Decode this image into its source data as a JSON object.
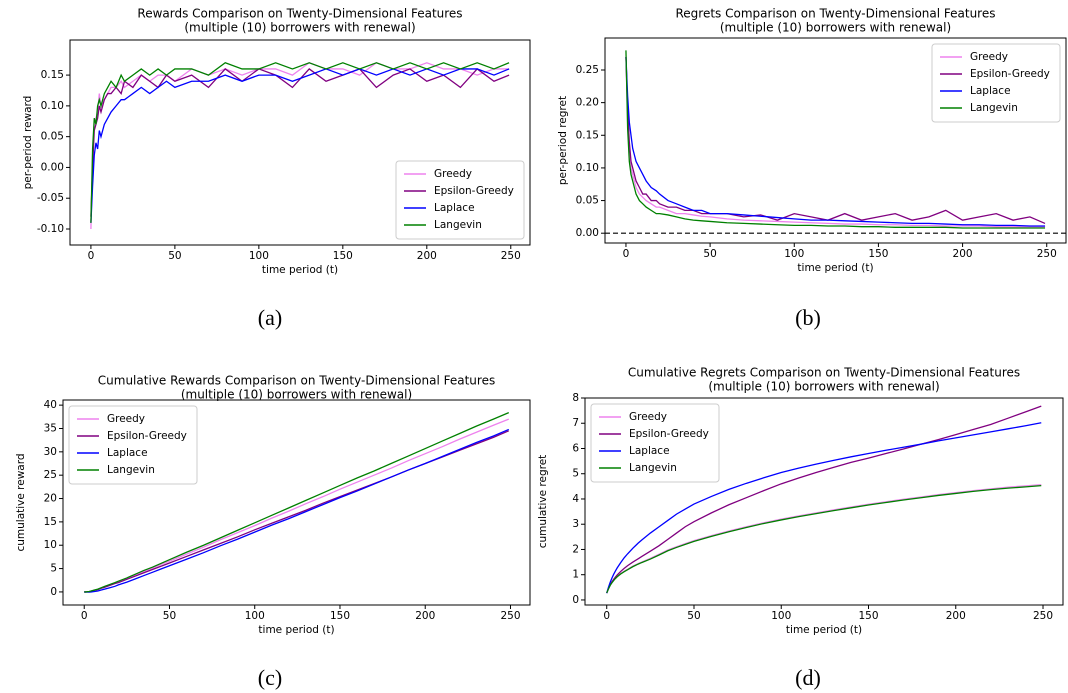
{
  "chart_data": [
    {
      "type": "line",
      "title": "Rewards Comparison on Twenty-Dimensional Features",
      "subtitle": "(multiple (10) borrowers with renewal)",
      "x_label": "time period (t)",
      "y_label": "per-period reward",
      "caption": "(a)",
      "legend": "lower right",
      "xlim": [
        -12.45,
        261.45
      ],
      "xticks": [
        0,
        50,
        100,
        150,
        200,
        250
      ],
      "ylim": [
        -0.126,
        0.207
      ],
      "yticks": [
        {
          "value": -0.1,
          "label": "-0.10"
        },
        -0.05,
        {
          "value": 0,
          "label": "0.00"
        },
        0.05,
        {
          "value": 0.1,
          "label": "0.10"
        },
        0.15
      ],
      "x": [
        0,
        1,
        2,
        3,
        4,
        5,
        6,
        8,
        10,
        12,
        15,
        18,
        20,
        25,
        30,
        35,
        40,
        45,
        50,
        60,
        70,
        80,
        90,
        100,
        110,
        120,
        130,
        140,
        150,
        160,
        170,
        180,
        190,
        200,
        210,
        220,
        230,
        240,
        249
      ],
      "series": [
        {
          "name": "Greedy",
          "color": "#ee82ee",
          "values": [
            -0.1,
            0.02,
            0.07,
            0.08,
            0.09,
            0.12,
            0.1,
            0.11,
            0.12,
            0.13,
            0.13,
            0.14,
            0.13,
            0.14,
            0.15,
            0.14,
            0.15,
            0.15,
            0.14,
            0.16,
            0.15,
            0.16,
            0.15,
            0.16,
            0.16,
            0.15,
            0.17,
            0.16,
            0.16,
            0.15,
            0.17,
            0.16,
            0.16,
            0.17,
            0.16,
            0.16,
            0.15,
            0.16,
            0.16
          ]
        },
        {
          "name": "Epsilon-Greedy",
          "color": "#800080",
          "values": [
            -0.08,
            0.0,
            0.06,
            0.07,
            0.08,
            0.1,
            0.09,
            0.11,
            0.12,
            0.12,
            0.13,
            0.12,
            0.14,
            0.13,
            0.15,
            0.14,
            0.13,
            0.15,
            0.14,
            0.15,
            0.13,
            0.16,
            0.14,
            0.16,
            0.15,
            0.13,
            0.16,
            0.14,
            0.15,
            0.16,
            0.13,
            0.15,
            0.16,
            0.14,
            0.15,
            0.13,
            0.16,
            0.14,
            0.15
          ]
        },
        {
          "name": "Laplace",
          "color": "#0000ff",
          "values": [
            -0.09,
            -0.03,
            0.02,
            0.04,
            0.03,
            0.06,
            0.05,
            0.07,
            0.08,
            0.09,
            0.1,
            0.11,
            0.11,
            0.12,
            0.13,
            0.12,
            0.13,
            0.14,
            0.13,
            0.14,
            0.14,
            0.15,
            0.14,
            0.15,
            0.15,
            0.14,
            0.15,
            0.16,
            0.15,
            0.16,
            0.15,
            0.16,
            0.15,
            0.16,
            0.15,
            0.16,
            0.16,
            0.15,
            0.16
          ]
        },
        {
          "name": "Langevin",
          "color": "#008000",
          "values": [
            -0.09,
            0.03,
            0.08,
            0.07,
            0.1,
            0.11,
            0.1,
            0.12,
            0.13,
            0.14,
            0.13,
            0.15,
            0.14,
            0.15,
            0.16,
            0.15,
            0.16,
            0.15,
            0.16,
            0.16,
            0.15,
            0.17,
            0.16,
            0.16,
            0.17,
            0.16,
            0.17,
            0.16,
            0.17,
            0.16,
            0.17,
            0.16,
            0.17,
            0.16,
            0.17,
            0.16,
            0.17,
            0.16,
            0.17
          ]
        }
      ]
    },
    {
      "type": "line",
      "title": "Regrets Comparison on Twenty-Dimensional Features",
      "subtitle": "(multiple (10) borrowers with renewal)",
      "x_label": "time period (t)",
      "y_label": "per-period regret",
      "caption": "(b)",
      "legend": "upper right",
      "reference_line": 0,
      "xlim": [
        -12.45,
        261.45
      ],
      "xticks": [
        0,
        50,
        100,
        150,
        200,
        250
      ],
      "ylim": [
        -0.015,
        0.299
      ],
      "yticks": [
        {
          "value": 0,
          "label": "0.00"
        },
        0.05,
        {
          "value": 0.1,
          "label": "0.10"
        },
        0.15,
        {
          "value": 0.2,
          "label": "0.20"
        },
        0.25
      ],
      "x": [
        0,
        1,
        2,
        3,
        4,
        5,
        6,
        8,
        10,
        12,
        15,
        18,
        20,
        25,
        30,
        35,
        40,
        45,
        50,
        60,
        70,
        80,
        90,
        100,
        110,
        120,
        130,
        140,
        150,
        160,
        170,
        180,
        190,
        200,
        210,
        220,
        230,
        240,
        249
      ],
      "series": [
        {
          "name": "Greedy",
          "color": "#ee82ee",
          "values": [
            0.27,
            0.17,
            0.12,
            0.1,
            0.09,
            0.08,
            0.07,
            0.06,
            0.055,
            0.05,
            0.045,
            0.04,
            0.04,
            0.035,
            0.03,
            0.03,
            0.028,
            0.026,
            0.025,
            0.022,
            0.02,
            0.019,
            0.018,
            0.017,
            0.016,
            0.015,
            0.014,
            0.014,
            0.013,
            0.013,
            0.012,
            0.012,
            0.011,
            0.011,
            0.011,
            0.01,
            0.01,
            0.01,
            0.01
          ]
        },
        {
          "name": "Epsilon-Greedy",
          "color": "#800080",
          "values": [
            0.27,
            0.19,
            0.14,
            0.11,
            0.1,
            0.09,
            0.08,
            0.07,
            0.06,
            0.06,
            0.05,
            0.05,
            0.045,
            0.04,
            0.04,
            0.035,
            0.035,
            0.03,
            0.03,
            0.03,
            0.025,
            0.028,
            0.02,
            0.03,
            0.025,
            0.02,
            0.03,
            0.02,
            0.025,
            0.03,
            0.02,
            0.025,
            0.035,
            0.02,
            0.025,
            0.03,
            0.02,
            0.025,
            0.015
          ]
        },
        {
          "name": "Laplace",
          "color": "#0000ff",
          "values": [
            0.27,
            0.21,
            0.17,
            0.15,
            0.13,
            0.12,
            0.11,
            0.1,
            0.09,
            0.08,
            0.07,
            0.065,
            0.06,
            0.05,
            0.045,
            0.04,
            0.035,
            0.035,
            0.03,
            0.03,
            0.028,
            0.026,
            0.024,
            0.022,
            0.02,
            0.02,
            0.019,
            0.018,
            0.017,
            0.016,
            0.015,
            0.015,
            0.014,
            0.013,
            0.013,
            0.012,
            0.012,
            0.011,
            0.011
          ]
        },
        {
          "name": "Langevin",
          "color": "#008000",
          "values": [
            0.28,
            0.16,
            0.11,
            0.09,
            0.08,
            0.07,
            0.06,
            0.05,
            0.045,
            0.04,
            0.035,
            0.03,
            0.03,
            0.028,
            0.025,
            0.022,
            0.02,
            0.019,
            0.018,
            0.016,
            0.015,
            0.014,
            0.013,
            0.012,
            0.012,
            0.011,
            0.011,
            0.01,
            0.01,
            0.009,
            0.009,
            0.009,
            0.009,
            0.008,
            0.008,
            0.008,
            0.008,
            0.008,
            0.008
          ]
        }
      ]
    },
    {
      "type": "line",
      "title": "Cumulative Rewards Comparison on Twenty-Dimensional Features",
      "subtitle": "(multiple (10) borrowers with renewal)",
      "x_label": "time period (t)",
      "y_label": "cumulative reward",
      "caption": "(c)",
      "legend": "upper left",
      "xlim": [
        -12.45,
        261.45
      ],
      "xticks": [
        0,
        50,
        100,
        150,
        200,
        250
      ],
      "ylim": [
        -2.8,
        41.1
      ],
      "yticks": [
        0,
        5,
        10,
        15,
        20,
        25,
        30,
        35,
        40
      ],
      "x": [
        0,
        1,
        2,
        3,
        4,
        5,
        6,
        8,
        10,
        12,
        15,
        18,
        20,
        25,
        30,
        35,
        40,
        45,
        50,
        60,
        70,
        80,
        90,
        100,
        110,
        120,
        130,
        140,
        150,
        160,
        170,
        180,
        190,
        200,
        210,
        220,
        230,
        240,
        249
      ],
      "series": [
        {
          "name": "Greedy",
          "color": "#ee82ee",
          "values": [
            0,
            0,
            0.04,
            0.1,
            0.18,
            0.28,
            0.37,
            0.56,
            0.84,
            1.1,
            1.5,
            1.9,
            2.2,
            2.9,
            3.6,
            4.4,
            5.1,
            5.9,
            6.6,
            8.1,
            9.6,
            11.2,
            12.7,
            14.2,
            15.8,
            17.3,
            18.9,
            20.4,
            22.0,
            23.5,
            25.0,
            26.5,
            28.1,
            29.6,
            31.1,
            32.7,
            34.2,
            35.7,
            37.0
          ]
        },
        {
          "name": "Epsilon-Greedy",
          "color": "#800080",
          "values": [
            0,
            0,
            0.04,
            0.1,
            0.17,
            0.26,
            0.35,
            0.5,
            0.8,
            1.0,
            1.4,
            1.8,
            2.0,
            2.7,
            3.4,
            4.1,
            4.8,
            5.5,
            6.2,
            7.6,
            9.0,
            10.4,
            11.8,
            13.3,
            14.7,
            16.1,
            17.5,
            19.0,
            20.4,
            21.8,
            23.2,
            24.6,
            26.1,
            27.5,
            28.9,
            30.3,
            31.7,
            33.1,
            34.5
          ]
        },
        {
          "name": "Laplace",
          "color": "#0000ff",
          "values": [
            0,
            -0.05,
            -0.05,
            -0.05,
            0,
            0.05,
            0.1,
            0.2,
            0.4,
            0.6,
            0.9,
            1.2,
            1.5,
            2.1,
            2.8,
            3.5,
            4.2,
            4.9,
            5.6,
            7.0,
            8.4,
            9.9,
            11.3,
            12.8,
            14.3,
            15.7,
            17.2,
            18.7,
            20.2,
            21.6,
            23.1,
            24.6,
            26.1,
            27.5,
            29.0,
            30.5,
            32.0,
            33.4,
            34.8
          ]
        },
        {
          "name": "Langevin",
          "color": "#008000",
          "values": [
            0,
            0,
            0.05,
            0.1,
            0.2,
            0.3,
            0.4,
            0.6,
            0.9,
            1.2,
            1.6,
            2.0,
            2.3,
            3.0,
            3.8,
            4.6,
            5.3,
            6.1,
            6.9,
            8.5,
            10.0,
            11.6,
            13.2,
            14.8,
            16.4,
            18.0,
            19.6,
            21.2,
            22.8,
            24.4,
            25.9,
            27.5,
            29.1,
            30.7,
            32.3,
            33.9,
            35.5,
            37.0,
            38.4
          ]
        }
      ]
    },
    {
      "type": "line",
      "title": "Cumulative Regrets Comparison on Twenty-Dimensional Features",
      "subtitle": "(multiple (10) borrowers with renewal)",
      "x_label": "time period (t)",
      "y_label": "cumulative regret",
      "caption": "(d)",
      "legend": "upper left",
      "xlim": [
        -12.45,
        261.45
      ],
      "xticks": [
        0,
        50,
        100,
        150,
        200,
        250
      ],
      "ylim": [
        -0.2,
        8.0
      ],
      "yticks": [
        0,
        1,
        2,
        3,
        4,
        5,
        6,
        7,
        8
      ],
      "x": [
        0,
        1,
        2,
        3,
        4,
        5,
        6,
        8,
        10,
        12,
        15,
        18,
        20,
        25,
        30,
        35,
        40,
        45,
        50,
        60,
        70,
        80,
        90,
        100,
        110,
        120,
        130,
        140,
        150,
        160,
        170,
        180,
        190,
        200,
        210,
        220,
        230,
        240,
        249
      ],
      "series": [
        {
          "name": "Greedy",
          "color": "#ee82ee",
          "values": [
            0.28,
            0.45,
            0.59,
            0.7,
            0.79,
            0.87,
            0.94,
            1.05,
            1.14,
            1.22,
            1.34,
            1.44,
            1.5,
            1.65,
            1.81,
            1.98,
            2.11,
            2.23,
            2.35,
            2.55,
            2.73,
            2.9,
            3.06,
            3.2,
            3.33,
            3.45,
            3.57,
            3.68,
            3.79,
            3.89,
            3.99,
            4.08,
            4.17,
            4.25,
            4.33,
            4.4,
            4.47,
            4.52,
            4.57
          ]
        },
        {
          "name": "Epsilon-Greedy",
          "color": "#800080",
          "values": [
            0.27,
            0.45,
            0.6,
            0.72,
            0.82,
            0.91,
            0.99,
            1.13,
            1.25,
            1.36,
            1.5,
            1.63,
            1.72,
            1.93,
            2.15,
            2.4,
            2.65,
            2.9,
            3.1,
            3.45,
            3.77,
            4.05,
            4.33,
            4.6,
            4.83,
            5.05,
            5.25,
            5.45,
            5.62,
            5.8,
            5.98,
            6.17,
            6.35,
            6.55,
            6.75,
            6.95,
            7.2,
            7.45,
            7.68
          ]
        },
        {
          "name": "Laplace",
          "color": "#0000ff",
          "values": [
            0.27,
            0.5,
            0.7,
            0.87,
            1.02,
            1.15,
            1.27,
            1.48,
            1.67,
            1.83,
            2.05,
            2.25,
            2.37,
            2.65,
            2.9,
            3.15,
            3.4,
            3.6,
            3.8,
            4.1,
            4.38,
            4.62,
            4.84,
            5.05,
            5.22,
            5.38,
            5.53,
            5.67,
            5.8,
            5.93,
            6.05,
            6.17,
            6.3,
            6.42,
            6.54,
            6.66,
            6.78,
            6.9,
            7.02
          ]
        },
        {
          "name": "Langevin",
          "color": "#008000",
          "values": [
            0.28,
            0.44,
            0.58,
            0.68,
            0.77,
            0.85,
            0.92,
            1.03,
            1.12,
            1.2,
            1.32,
            1.42,
            1.48,
            1.62,
            1.78,
            1.95,
            2.08,
            2.2,
            2.32,
            2.52,
            2.7,
            2.87,
            3.03,
            3.17,
            3.3,
            3.42,
            3.54,
            3.65,
            3.76,
            3.86,
            3.96,
            4.05,
            4.14,
            4.22,
            4.3,
            4.37,
            4.43,
            4.48,
            4.53
          ]
        }
      ]
    }
  ]
}
